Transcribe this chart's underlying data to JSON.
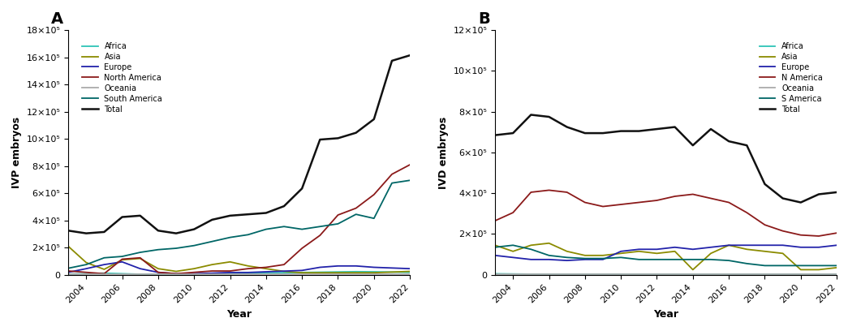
{
  "years": [
    2003,
    2004,
    2005,
    2006,
    2007,
    2008,
    2009,
    2010,
    2011,
    2012,
    2013,
    2014,
    2015,
    2016,
    2017,
    2018,
    2019,
    2020,
    2021,
    2022
  ],
  "ivp": {
    "Africa": [
      5000,
      8000,
      12000,
      8000,
      4000,
      3000,
      3000,
      5000,
      7000,
      9000,
      11000,
      13000,
      15000,
      17000,
      19000,
      21000,
      23000,
      22000,
      20000,
      18000
    ],
    "Asia": [
      210000,
      90000,
      40000,
      110000,
      120000,
      45000,
      25000,
      45000,
      75000,
      95000,
      65000,
      45000,
      25000,
      15000,
      15000,
      15000,
      15000,
      15000,
      20000,
      25000
    ],
    "Europe": [
      18000,
      45000,
      75000,
      95000,
      45000,
      18000,
      8000,
      8000,
      12000,
      17000,
      17000,
      22000,
      27000,
      32000,
      55000,
      65000,
      65000,
      55000,
      50000,
      45000
    ],
    "North America": [
      28000,
      18000,
      8000,
      115000,
      125000,
      18000,
      8000,
      18000,
      28000,
      28000,
      45000,
      55000,
      75000,
      195000,
      290000,
      440000,
      490000,
      590000,
      740000,
      810000
    ],
    "Oceania": [
      4000,
      4000,
      4000,
      4000,
      4000,
      4000,
      4000,
      4000,
      4000,
      4000,
      4000,
      4000,
      4000,
      4000,
      4000,
      4000,
      4000,
      4000,
      4000,
      4000
    ],
    "South America": [
      48000,
      75000,
      125000,
      135000,
      165000,
      185000,
      195000,
      215000,
      245000,
      275000,
      295000,
      335000,
      355000,
      335000,
      355000,
      375000,
      445000,
      415000,
      675000,
      695000
    ],
    "Total": [
      325000,
      305000,
      315000,
      425000,
      435000,
      325000,
      305000,
      335000,
      405000,
      435000,
      445000,
      455000,
      505000,
      635000,
      995000,
      1005000,
      1045000,
      1145000,
      1575000,
      1615000
    ]
  },
  "ivd": {
    "Africa": [
      5000,
      4000,
      3000,
      3000,
      3000,
      3000,
      3000,
      3000,
      3000,
      3000,
      3000,
      3000,
      3000,
      3000,
      3000,
      3000,
      3000,
      3000,
      3000,
      3000
    ],
    "Asia": [
      145000,
      115000,
      145000,
      155000,
      115000,
      95000,
      95000,
      105000,
      115000,
      105000,
      115000,
      25000,
      105000,
      145000,
      125000,
      115000,
      105000,
      25000,
      25000,
      35000
    ],
    "Europe": [
      95000,
      85000,
      75000,
      75000,
      70000,
      75000,
      75000,
      115000,
      125000,
      125000,
      135000,
      125000,
      135000,
      145000,
      145000,
      145000,
      145000,
      135000,
      135000,
      145000
    ],
    "N America": [
      265000,
      305000,
      405000,
      415000,
      405000,
      355000,
      335000,
      345000,
      355000,
      365000,
      385000,
      395000,
      375000,
      355000,
      305000,
      245000,
      215000,
      195000,
      190000,
      205000
    ],
    "Oceania": [
      4000,
      4000,
      4000,
      4000,
      4000,
      4000,
      4000,
      4000,
      4000,
      4000,
      4000,
      4000,
      4000,
      4000,
      4000,
      4000,
      4000,
      4000,
      4000,
      4000
    ],
    "S America": [
      135000,
      145000,
      125000,
      95000,
      85000,
      80000,
      80000,
      85000,
      75000,
      75000,
      75000,
      75000,
      75000,
      70000,
      55000,
      45000,
      45000,
      45000,
      45000,
      45000
    ],
    "Total": [
      685000,
      695000,
      785000,
      775000,
      725000,
      695000,
      695000,
      705000,
      705000,
      715000,
      725000,
      635000,
      715000,
      655000,
      635000,
      445000,
      375000,
      355000,
      395000,
      405000
    ]
  },
  "ivp_colors": {
    "Africa": "#2EC4B6",
    "Asia": "#8B8B00",
    "Europe": "#2222AA",
    "North America": "#8B1A1A",
    "Oceania": "#AAAAAA",
    "South America": "#006666",
    "Total": "#111111"
  },
  "ivd_colors": {
    "Africa": "#2EC4B6",
    "Asia": "#8B8B00",
    "Europe": "#2222AA",
    "N America": "#8B1A1A",
    "Oceania": "#AAAAAA",
    "S America": "#006666",
    "Total": "#111111"
  },
  "ivp_ylim": [
    0,
    1800000
  ],
  "ivd_ylim": [
    0,
    1200000
  ],
  "ivp_yticks": [
    0,
    200000,
    400000,
    600000,
    800000,
    1000000,
    1200000,
    1400000,
    1600000,
    1800000
  ],
  "ivd_yticks": [
    0,
    200000,
    400000,
    600000,
    800000,
    1000000,
    1200000
  ],
  "xticks": [
    2004,
    2006,
    2008,
    2010,
    2012,
    2014,
    2016,
    2018,
    2020,
    2022
  ],
  "xlabel": "Year",
  "ivp_ylabel": "IVP embryos",
  "ivd_ylabel": "IVD embryos",
  "panel_A": "A",
  "panel_B": "B",
  "legend_A": [
    "Africa",
    "Asia",
    "Europe",
    "North America",
    "Oceania",
    "South America",
    "Total"
  ],
  "legend_B": [
    "Africa",
    "Asia",
    "Europe",
    "N America",
    "Oceania",
    "S America",
    "Total"
  ]
}
